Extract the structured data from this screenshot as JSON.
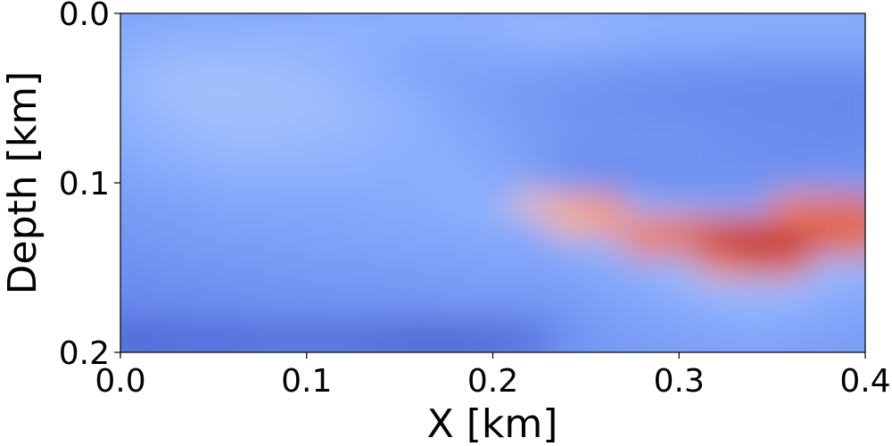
{
  "chart_data": {
    "type": "heatmap",
    "title": "",
    "xlabel": "X [km]",
    "ylabel": "Depth [km]",
    "xlim": [
      0.0,
      0.4
    ],
    "ylim": [
      0.0,
      0.2
    ],
    "y_inverted": true,
    "colormap": "coolwarm",
    "x_ticks": [
      {
        "value": 0.0,
        "label": "0.0"
      },
      {
        "value": 0.1,
        "label": "0.1"
      },
      {
        "value": 0.2,
        "label": "0.2"
      },
      {
        "value": 0.3,
        "label": "0.3"
      },
      {
        "value": 0.4,
        "label": "0.4"
      }
    ],
    "y_ticks": [
      {
        "value": 0.0,
        "label": "0.0"
      },
      {
        "value": 0.1,
        "label": "0.1"
      },
      {
        "value": 0.2,
        "label": "0.2"
      }
    ],
    "grid": false,
    "colorbar": false,
    "rows_depth_km": [
      0.0,
      0.0125,
      0.025,
      0.0375,
      0.05,
      0.0625,
      0.075,
      0.0875,
      0.1,
      0.1125,
      0.125,
      0.1375,
      0.15,
      0.1625,
      0.175,
      0.1875,
      0.2
    ],
    "cols_x_km": [
      0.0,
      0.02,
      0.04,
      0.06,
      0.08,
      0.1,
      0.12,
      0.14,
      0.16,
      0.18,
      0.2,
      0.22,
      0.24,
      0.26,
      0.28,
      0.3,
      0.32,
      0.34,
      0.36,
      0.38,
      0.4
    ],
    "values_normalized": [
      [
        0.27,
        0.27,
        0.28,
        0.28,
        0.29,
        0.29,
        0.3,
        0.3,
        0.31,
        0.31,
        0.32,
        0.33,
        0.32,
        0.31,
        0.3,
        0.3,
        0.3,
        0.3,
        0.3,
        0.3,
        0.3
      ],
      [
        0.28,
        0.29,
        0.3,
        0.3,
        0.31,
        0.31,
        0.31,
        0.3,
        0.29,
        0.29,
        0.3,
        0.31,
        0.32,
        0.31,
        0.3,
        0.29,
        0.29,
        0.28,
        0.28,
        0.28,
        0.28
      ],
      [
        0.3,
        0.32,
        0.33,
        0.33,
        0.33,
        0.32,
        0.31,
        0.29,
        0.26,
        0.26,
        0.27,
        0.28,
        0.27,
        0.26,
        0.25,
        0.24,
        0.24,
        0.24,
        0.24,
        0.24,
        0.24
      ],
      [
        0.32,
        0.34,
        0.36,
        0.36,
        0.35,
        0.34,
        0.32,
        0.29,
        0.27,
        0.25,
        0.24,
        0.23,
        0.22,
        0.21,
        0.2,
        0.2,
        0.19,
        0.19,
        0.18,
        0.18,
        0.18
      ],
      [
        0.31,
        0.34,
        0.36,
        0.36,
        0.36,
        0.35,
        0.33,
        0.31,
        0.29,
        0.26,
        0.24,
        0.22,
        0.21,
        0.2,
        0.19,
        0.18,
        0.18,
        0.17,
        0.17,
        0.17,
        0.16
      ],
      [
        0.3,
        0.32,
        0.34,
        0.35,
        0.35,
        0.35,
        0.34,
        0.32,
        0.3,
        0.27,
        0.25,
        0.23,
        0.21,
        0.2,
        0.2,
        0.2,
        0.19,
        0.18,
        0.18,
        0.17,
        0.17
      ],
      [
        0.29,
        0.31,
        0.33,
        0.34,
        0.34,
        0.33,
        0.32,
        0.31,
        0.3,
        0.28,
        0.26,
        0.23,
        0.22,
        0.21,
        0.21,
        0.21,
        0.2,
        0.2,
        0.19,
        0.19,
        0.19
      ],
      [
        0.27,
        0.29,
        0.3,
        0.31,
        0.31,
        0.31,
        0.31,
        0.3,
        0.3,
        0.29,
        0.27,
        0.24,
        0.2,
        0.19,
        0.2,
        0.2,
        0.2,
        0.19,
        0.18,
        0.18,
        0.19
      ],
      [
        0.25,
        0.27,
        0.28,
        0.29,
        0.29,
        0.29,
        0.29,
        0.29,
        0.29,
        0.3,
        0.28,
        0.26,
        0.21,
        0.19,
        0.19,
        0.19,
        0.2,
        0.21,
        0.22,
        0.24,
        0.23
      ],
      [
        0.23,
        0.24,
        0.25,
        0.27,
        0.27,
        0.27,
        0.27,
        0.28,
        0.28,
        0.3,
        0.3,
        0.6,
        0.65,
        0.7,
        0.3,
        0.28,
        0.26,
        0.25,
        0.75,
        0.8,
        0.82
      ],
      [
        0.22,
        0.23,
        0.24,
        0.25,
        0.25,
        0.26,
        0.26,
        0.27,
        0.27,
        0.28,
        0.29,
        0.28,
        0.63,
        0.7,
        0.75,
        0.78,
        0.82,
        0.85,
        0.85,
        0.83,
        0.82
      ],
      [
        0.21,
        0.22,
        0.23,
        0.23,
        0.24,
        0.24,
        0.25,
        0.25,
        0.26,
        0.26,
        0.27,
        0.27,
        0.29,
        0.32,
        0.76,
        0.8,
        0.97,
        1.0,
        0.98,
        0.85,
        0.8
      ],
      [
        0.19,
        0.2,
        0.21,
        0.22,
        0.22,
        0.23,
        0.23,
        0.23,
        0.24,
        0.24,
        0.25,
        0.25,
        0.26,
        0.28,
        0.3,
        0.34,
        0.7,
        0.8,
        0.78,
        0.35,
        0.33
      ],
      [
        0.18,
        0.19,
        0.19,
        0.2,
        0.21,
        0.21,
        0.21,
        0.22,
        0.22,
        0.23,
        0.23,
        0.23,
        0.24,
        0.26,
        0.28,
        0.3,
        0.32,
        0.34,
        0.33,
        0.3,
        0.28
      ],
      [
        0.16,
        0.17,
        0.18,
        0.18,
        0.19,
        0.19,
        0.2,
        0.2,
        0.2,
        0.21,
        0.21,
        0.21,
        0.22,
        0.24,
        0.26,
        0.28,
        0.3,
        0.31,
        0.3,
        0.28,
        0.26
      ],
      [
        0.08,
        0.09,
        0.1,
        0.1,
        0.11,
        0.11,
        0.11,
        0.1,
        0.09,
        0.09,
        0.1,
        0.12,
        0.2,
        0.23,
        0.24,
        0.25,
        0.26,
        0.27,
        0.26,
        0.25,
        0.24
      ],
      [
        0.08,
        0.08,
        0.09,
        0.09,
        0.1,
        0.1,
        0.1,
        0.09,
        0.08,
        0.08,
        0.09,
        0.11,
        0.19,
        0.22,
        0.23,
        0.24,
        0.25,
        0.26,
        0.25,
        0.24,
        0.23
      ]
    ]
  }
}
